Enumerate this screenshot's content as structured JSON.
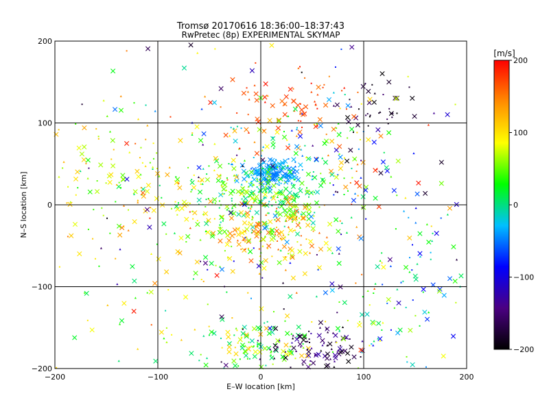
{
  "chart_data": {
    "type": "scatter",
    "title": "Tromsø 20170616 18:36:00–18:37:43",
    "subtitle": "RwPretec (8p) EXPERIMENTAL SKYMAP",
    "xlabel": "E–W location [km]",
    "ylabel": "N–S location [km]",
    "xlim": [
      -200,
      200
    ],
    "ylim": [
      -200,
      200
    ],
    "xticks": [
      -200,
      -100,
      0,
      100,
      200
    ],
    "yticks": [
      -200,
      -100,
      0,
      100,
      200
    ],
    "xtick_labels": [
      "−200",
      "−100",
      "0",
      "100",
      "200"
    ],
    "ytick_labels": [
      "−200",
      "−100",
      "0",
      "100",
      "200"
    ],
    "grid": true,
    "colorbar": {
      "label": "[m/s]",
      "min": -200,
      "max": 200,
      "ticks": [
        200,
        100,
        0,
        -100,
        -200
      ],
      "tick_labels": [
        "200",
        "100",
        "0",
        "−100",
        "−200"
      ],
      "colormap": [
        "#000000",
        "#4b0082",
        "#0000ff",
        "#00bfff",
        "#00ff00",
        "#ffff00",
        "#ff8c00",
        "#ff0000"
      ]
    },
    "markers": [
      "cross",
      "dot",
      "triangle"
    ],
    "clusters": [
      {
        "cx": 10,
        "cy": 40,
        "sx": 15,
        "sy": 8,
        "n": 160,
        "vmin": -60,
        "vmax": -20
      },
      {
        "cx": 5,
        "cy": 10,
        "sx": 30,
        "sy": 20,
        "n": 200,
        "vmin": -20,
        "vmax": 60
      },
      {
        "cx": 10,
        "cy": -30,
        "sx": 30,
        "sy": 25,
        "n": 180,
        "vmin": 40,
        "vmax": 170
      },
      {
        "cx": -60,
        "cy": 10,
        "sx": 50,
        "sy": 35,
        "n": 130,
        "vmin": 0,
        "vmax": 130
      },
      {
        "cx": -150,
        "cy": 50,
        "sx": 30,
        "sy": 40,
        "n": 60,
        "vmin": 30,
        "vmax": 140
      },
      {
        "cx": 110,
        "cy": 120,
        "sx": 20,
        "sy": 15,
        "n": 40,
        "vmin": -200,
        "vmax": -150
      },
      {
        "cx": 95,
        "cy": 40,
        "sx": 15,
        "sy": 25,
        "n": 40,
        "vmin": -200,
        "vmax": 200
      },
      {
        "cx": 20,
        "cy": 130,
        "sx": 30,
        "sy": 20,
        "n": 60,
        "vmin": 150,
        "vmax": 200
      },
      {
        "cx": 40,
        "cy": 90,
        "sx": 40,
        "sy": 20,
        "n": 70,
        "vmin": -80,
        "vmax": 180
      },
      {
        "cx": 0,
        "cy": -170,
        "sx": 35,
        "sy": 15,
        "n": 120,
        "vmin": -10,
        "vmax": 120
      },
      {
        "cx": 55,
        "cy": -175,
        "sx": 25,
        "sy": 12,
        "n": 90,
        "vmin": -200,
        "vmax": -120
      },
      {
        "cx": 120,
        "cy": -140,
        "sx": 40,
        "sy": 40,
        "n": 60,
        "vmin": -100,
        "vmax": 120
      },
      {
        "cx": 150,
        "cy": -60,
        "sx": 35,
        "sy": 40,
        "n": 50,
        "vmin": -120,
        "vmax": 40
      },
      {
        "cx": -140,
        "cy": -80,
        "sx": 40,
        "sy": 60,
        "n": 40,
        "vmin": 0,
        "vmax": 150
      },
      {
        "cx": 0,
        "cy": 0,
        "sx": 120,
        "sy": 110,
        "n": 250,
        "vmin": -200,
        "vmax": 200
      }
    ]
  }
}
